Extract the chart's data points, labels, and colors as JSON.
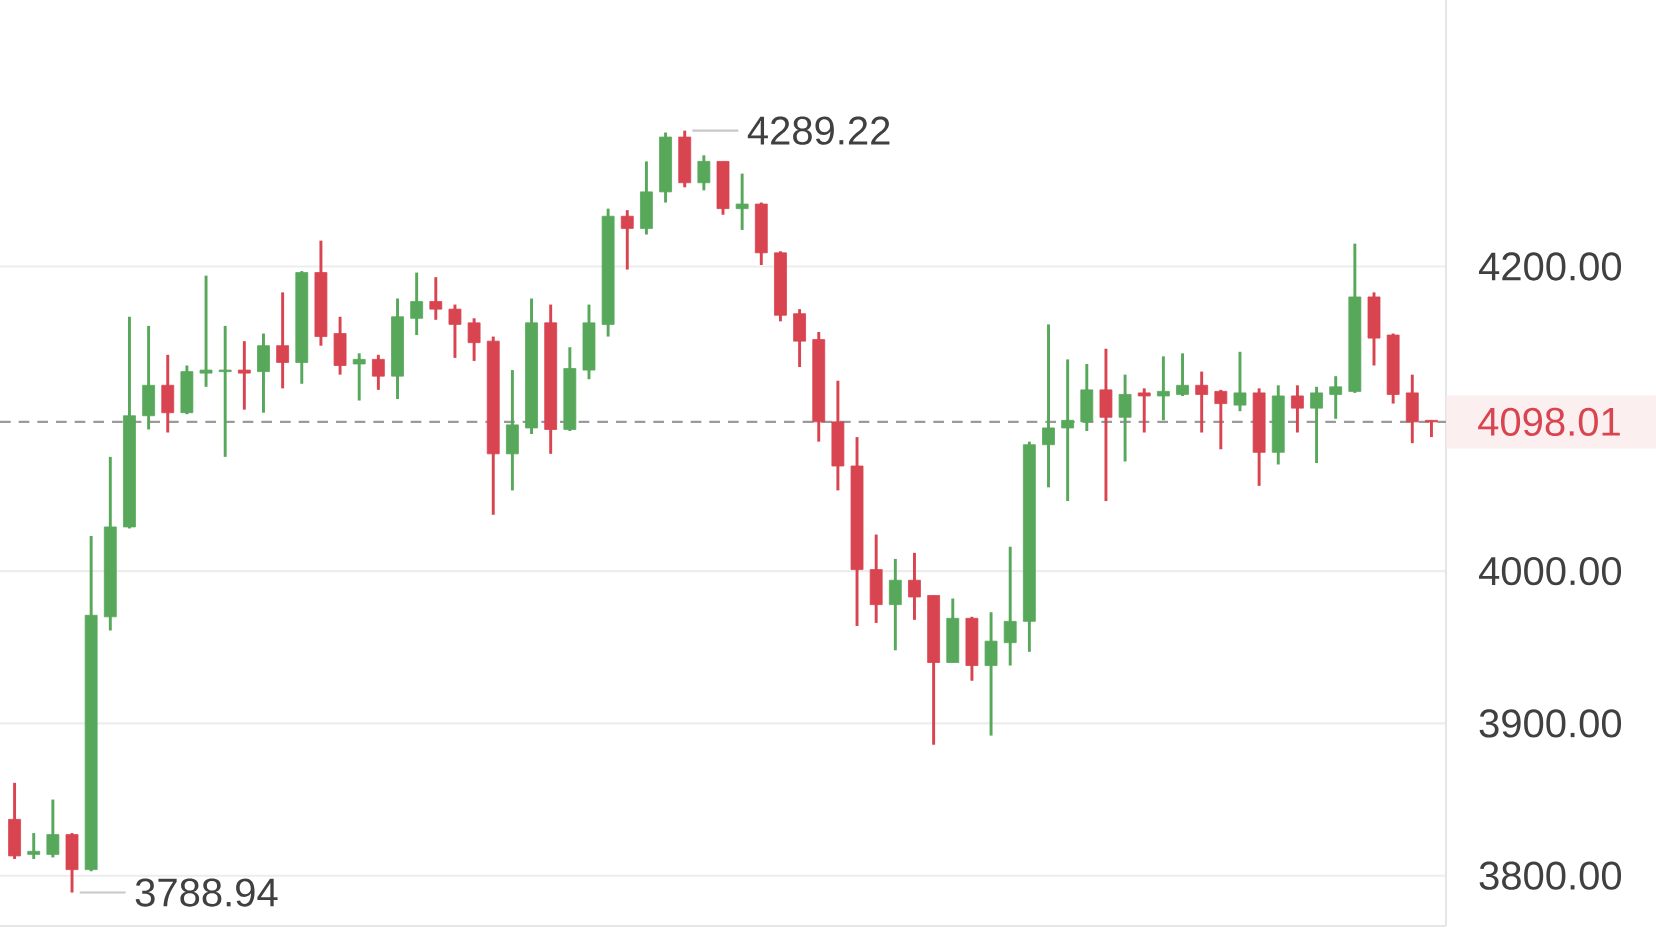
{
  "chart_data": {
    "type": "candlestick",
    "categories": [
      null,
      null,
      null,
      null,
      null,
      null,
      null,
      null,
      null,
      null,
      null,
      null,
      null,
      null,
      null,
      null,
      null,
      null,
      null,
      null,
      null,
      null,
      null,
      null,
      null,
      null,
      null,
      null,
      null,
      null,
      null,
      null,
      null,
      null,
      null,
      null,
      null,
      null,
      null,
      null,
      null,
      null,
      null,
      null,
      null,
      null,
      null,
      null,
      null,
      null,
      null,
      null,
      null,
      null,
      null,
      null,
      null,
      null,
      null,
      null,
      null,
      null,
      null,
      null,
      null,
      null,
      null,
      null,
      null,
      null,
      null,
      null,
      null,
      null,
      null
    ],
    "ohlc": [
      [
        3837,
        3861,
        3811,
        3813
      ],
      [
        3814,
        3828,
        3811,
        3816
      ],
      [
        3814,
        3850,
        3812,
        3827
      ],
      [
        3827,
        3828,
        3788.94,
        3804
      ],
      [
        3804,
        4023,
        3803,
        3971
      ],
      [
        3970,
        4075,
        3961,
        4029
      ],
      [
        4029,
        4167,
        4028,
        4102
      ],
      [
        4102,
        4161,
        4093,
        4122
      ],
      [
        4122,
        4142,
        4091,
        4104
      ],
      [
        4104,
        4135,
        4103,
        4131
      ],
      [
        4130,
        4194,
        4121,
        4132
      ],
      [
        4131,
        4161,
        4075,
        4132
      ],
      [
        4132,
        4151,
        4106,
        4130
      ],
      [
        4131,
        4156,
        4104,
        4148
      ],
      [
        4148,
        4183,
        4120,
        4137
      ],
      [
        4137,
        4197,
        4123,
        4196
      ],
      [
        4196,
        4217,
        4148,
        4154
      ],
      [
        4156,
        4167,
        4129,
        4135
      ],
      [
        4136,
        4143,
        4112,
        4139
      ],
      [
        4139,
        4142,
        4119,
        4128
      ],
      [
        4128,
        4179,
        4113,
        4167
      ],
      [
        4166,
        4196,
        4155,
        4177
      ],
      [
        4177,
        4193,
        4165,
        4172
      ],
      [
        4172,
        4175,
        4140,
        4162
      ],
      [
        4163,
        4166,
        4138,
        4150
      ],
      [
        4151,
        4154,
        4037,
        4077
      ],
      [
        4077,
        4132,
        4053,
        4096
      ],
      [
        4094,
        4179,
        4090,
        4163
      ],
      [
        4163,
        4175,
        4077,
        4093
      ],
      [
        4093,
        4147,
        4092,
        4133
      ],
      [
        4132,
        4175,
        4126,
        4163
      ],
      [
        4162,
        4238,
        4154,
        4233
      ],
      [
        4233,
        4237,
        4198,
        4225
      ],
      [
        4225,
        4269,
        4221,
        4249
      ],
      [
        4249,
        4288,
        4242,
        4285
      ],
      [
        4285,
        4289.22,
        4252,
        4255
      ],
      [
        4255,
        4273,
        4250,
        4269
      ],
      [
        4269,
        4269,
        4234,
        4238
      ],
      [
        4238,
        4261,
        4224,
        4241
      ],
      [
        4241,
        4242,
        4201,
        4209
      ],
      [
        4209,
        4210,
        4164,
        4168
      ],
      [
        4169,
        4172,
        4134,
        4151
      ],
      [
        4152,
        4157,
        4085,
        4098
      ],
      [
        4098,
        4125,
        4053,
        4069
      ],
      [
        4069,
        4088,
        3964,
        4001
      ],
      [
        4001,
        4024,
        3966,
        3978
      ],
      [
        3978,
        4008,
        3948,
        3994
      ],
      [
        3994,
        4012,
        3968,
        3983
      ],
      [
        3984,
        3984,
        3886,
        3940
      ],
      [
        3940,
        3982,
        3940,
        3969
      ],
      [
        3969,
        3970,
        3928,
        3938
      ],
      [
        3938,
        3973,
        3892,
        3954
      ],
      [
        3953,
        4016,
        3938,
        3967
      ],
      [
        3967,
        4085,
        3947,
        4083
      ],
      [
        4083,
        4162,
        4055,
        4094
      ],
      [
        4094,
        4139,
        4046,
        4099
      ],
      [
        4098,
        4136,
        4092,
        4119
      ],
      [
        4119,
        4146,
        4046,
        4101
      ],
      [
        4101,
        4129,
        4072,
        4116
      ],
      [
        4117,
        4120,
        4091,
        4115
      ],
      [
        4115,
        4141,
        4099,
        4118
      ],
      [
        4116,
        4143,
        4115,
        4122
      ],
      [
        4122,
        4131,
        4091,
        4116
      ],
      [
        4118,
        4119,
        4080,
        4110
      ],
      [
        4109,
        4144,
        4105,
        4117
      ],
      [
        4117,
        4120,
        4056,
        4078
      ],
      [
        4078,
        4122,
        4070,
        4115
      ],
      [
        4115,
        4122,
        4091,
        4107
      ],
      [
        4107,
        4121,
        4071,
        4117
      ],
      [
        4116,
        4128,
        4100,
        4121
      ],
      [
        4118,
        4215,
        4117,
        4180
      ],
      [
        4180,
        4183,
        4135,
        4153
      ],
      [
        4155,
        4156,
        4110,
        4116
      ],
      [
        4117,
        4129,
        4084,
        4098
      ],
      [
        4099,
        4099,
        4088,
        4098
      ]
    ],
    "colors": [
      "#d8444f",
      "#57a85b",
      "#57a85b",
      "#d8444f",
      "#57a85b",
      "#57a85b",
      "#57a85b",
      "#57a85b",
      "#d8444f",
      "#57a85b",
      "#57a85b",
      "#57a85b",
      "#d8444f",
      "#57a85b",
      "#d8444f",
      "#57a85b",
      "#d8444f",
      "#d8444f",
      "#57a85b",
      "#d8444f",
      "#57a85b",
      "#57a85b",
      "#d8444f",
      "#d8444f",
      "#d8444f",
      "#d8444f",
      "#57a85b",
      "#57a85b",
      "#d8444f",
      "#57a85b",
      "#57a85b",
      "#57a85b",
      "#d8444f",
      "#57a85b",
      "#57a85b",
      "#d8444f",
      "#57a85b",
      "#d8444f",
      "#57a85b",
      "#d8444f",
      "#d8444f",
      "#d8444f",
      "#d8444f",
      "#d8444f",
      "#d8444f",
      "#d8444f",
      "#57a85b",
      "#d8444f",
      "#d8444f",
      "#57a85b",
      "#d8444f",
      "#57a85b",
      "#57a85b",
      "#57a85b",
      "#57a85b",
      "#57a85b",
      "#57a85b",
      "#d8444f",
      "#57a85b",
      "#d8444f",
      "#57a85b",
      "#57a85b",
      "#d8444f",
      "#d8444f",
      "#57a85b",
      "#d8444f",
      "#57a85b",
      "#d8444f",
      "#57a85b",
      "#57a85b",
      "#57a85b",
      "#d8444f",
      "#d8444f",
      "#d8444f",
      "#d8444f"
    ],
    "ylim": [
      3767,
      4375
    ],
    "yticks": [
      {
        "value": 3800,
        "label": "3800.00"
      },
      {
        "value": 3900,
        "label": "3900.00"
      },
      {
        "value": 4000,
        "label": "4000.00"
      },
      {
        "value": 4200,
        "label": "4200.00"
      }
    ],
    "grid": "y",
    "tick_labels": "y",
    "ref_lines": [
      {
        "axis": "y",
        "value": 4098.01,
        "label": "4098.01",
        "color": "#9a9a9a",
        "line_style": "dashed"
      }
    ],
    "annotations": [
      "4289.22",
      "3788.94"
    ]
  }
}
